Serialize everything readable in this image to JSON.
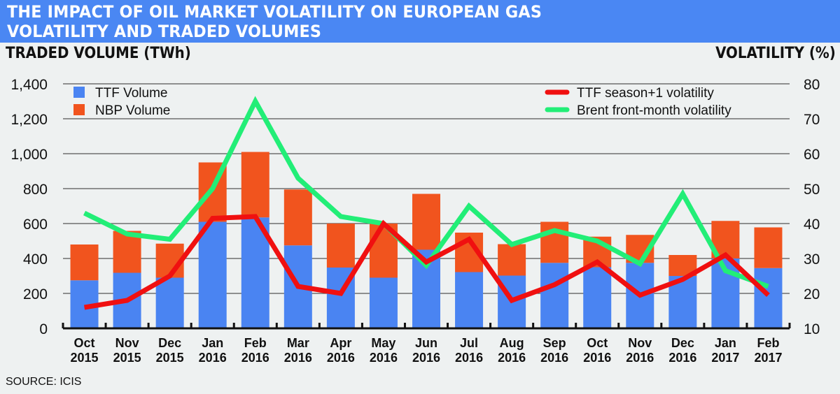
{
  "chart_data": {
    "type": "bar",
    "title": "THE IMPACT OF OIL MARKET VOLATILITY ON EUROPEAN GAS VOLATILITY AND TRADED VOLUMES",
    "title_lines": [
      "THE IMPACT OF OIL MARKET VOLATILITY ON EUROPEAN GAS",
      "VOLATILITY AND TRADED VOLUMES"
    ],
    "ylabel": "TRADED VOLUME (TWh)",
    "y2label": "VOLATILITY (%)",
    "ylim": [
      0,
      1400
    ],
    "y2lim": [
      10,
      80
    ],
    "yticks": [
      "0",
      "200",
      "400",
      "600",
      "800",
      "1,000",
      "1,200",
      "1,400"
    ],
    "y2ticks": [
      "10",
      "20",
      "30",
      "40",
      "50",
      "60",
      "70",
      "80"
    ],
    "categories": [
      [
        "Oct",
        "2015"
      ],
      [
        "Nov",
        "2015"
      ],
      [
        "Dec",
        "2015"
      ],
      [
        "Jan",
        "2016"
      ],
      [
        "Feb",
        "2016"
      ],
      [
        "Mar",
        "2016"
      ],
      [
        "Apr",
        "2016"
      ],
      [
        "May",
        "2016"
      ],
      [
        "Jun",
        "2016"
      ],
      [
        "Jul",
        "2016"
      ],
      [
        "Aug",
        "2016"
      ],
      [
        "Sep",
        "2016"
      ],
      [
        "Oct",
        "2016"
      ],
      [
        "Nov",
        "2016"
      ],
      [
        "Dec",
        "2016"
      ],
      [
        "Jan",
        "2017"
      ],
      [
        "Feb",
        "2017"
      ]
    ],
    "bar_series": [
      {
        "name": "TTF Volume",
        "color": "#4a84f2",
        "values": [
          275,
          318,
          290,
          610,
          635,
          475,
          348,
          290,
          450,
          322,
          302,
          375,
          350,
          375,
          300,
          400,
          345
        ]
      },
      {
        "name": "NBP Volume",
        "color": "#f1541e",
        "values": [
          205,
          240,
          195,
          340,
          375,
          320,
          252,
          310,
          320,
          226,
          180,
          235,
          175,
          160,
          120,
          215,
          233
        ]
      }
    ],
    "line_series": [
      {
        "name": "TTF season+1 volatility",
        "axis": "right",
        "color": "#f01010",
        "values": [
          16,
          18,
          25,
          41.5,
          42,
          22,
          20,
          40,
          29,
          35.5,
          18,
          22.5,
          29,
          19.5,
          24,
          31,
          19.5
        ]
      },
      {
        "name": "Brent front-month volatility",
        "axis": "right",
        "color": "#22ee77",
        "values": [
          43,
          37,
          35.5,
          50,
          75,
          53,
          42,
          40,
          28,
          45,
          34,
          38,
          35,
          28.5,
          48.5,
          26.5,
          22
        ]
      }
    ],
    "legend_placement": [
      "top-left",
      "top-right"
    ],
    "grid": true
  },
  "source": "SOURCE: ICIS"
}
